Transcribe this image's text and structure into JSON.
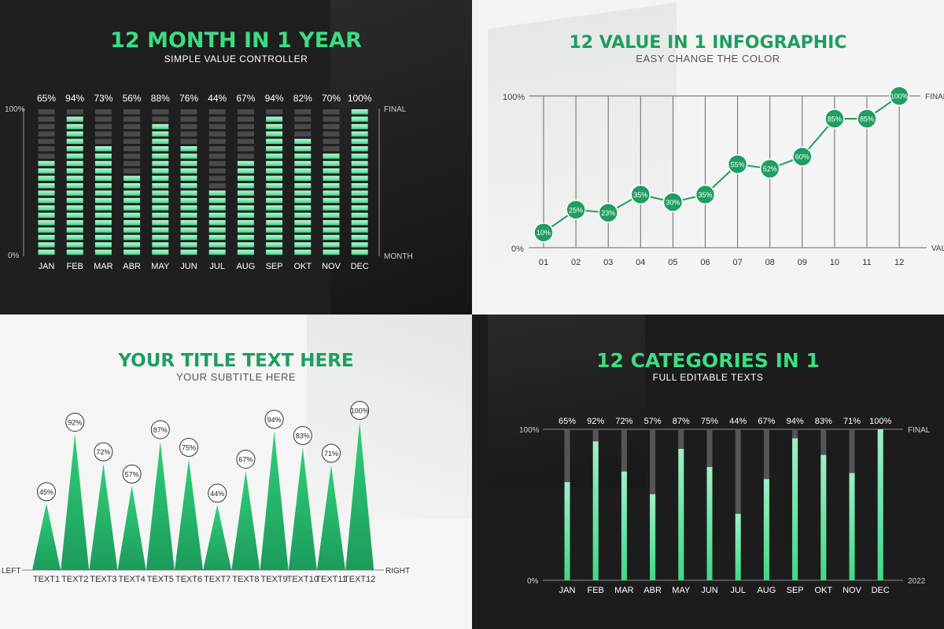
{
  "colors": {
    "green": "#3ddc84",
    "green_dark": "#1e9e60",
    "mint": "#9ff0c8",
    "gray_block": "#4a4a4a",
    "dark_bg": "#1f1f1f",
    "light_bg": "#f3f4f3"
  },
  "panel1": {
    "title": "12 MONTH IN 1 YEAR",
    "subtitle": "SIMPLE VALUE CONTROLLER",
    "chart_data": {
      "type": "bar",
      "categories": [
        "JAN",
        "FEB",
        "MAR",
        "ABR",
        "MAY",
        "JUN",
        "JUL",
        "AUG",
        "SEP",
        "OKT",
        "NOV",
        "DEC"
      ],
      "values": [
        65,
        94,
        73,
        56,
        88,
        76,
        44,
        67,
        94,
        82,
        70,
        100
      ],
      "value_labels": [
        "65%",
        "94%",
        "73%",
        "56%",
        "88%",
        "76%",
        "44%",
        "67%",
        "94%",
        "82%",
        "70%",
        "100%"
      ],
      "ylim": [
        0,
        100
      ],
      "y_top_label": "100%",
      "y_bottom_label": "0%",
      "right_top_label": "FINAL",
      "right_bottom_label": "MONTH"
    }
  },
  "panel2": {
    "title": "12 VALUE IN 1 INFOGRAPHIC",
    "subtitle": "EASY CHANGE THE COLOR",
    "chart_data": {
      "type": "line",
      "categories": [
        "01",
        "02",
        "03",
        "04",
        "05",
        "06",
        "07",
        "08",
        "09",
        "10",
        "11",
        "12"
      ],
      "values": [
        10,
        25,
        23,
        35,
        30,
        35,
        55,
        52,
        60,
        85,
        85,
        100
      ],
      "value_labels": [
        "10%",
        "25%",
        "23%",
        "35%",
        "30%",
        "35%",
        "55%",
        "52%",
        "60%",
        "85%",
        "85%",
        "100%"
      ],
      "ylim": [
        0,
        100
      ],
      "y_top_label": "100%",
      "y_bottom_label": "0%",
      "right_top_label": "FINAL",
      "right_bottom_label": "VALUES"
    }
  },
  "panel3": {
    "title": "YOUR TITLE TEXT HERE",
    "subtitle": "YOUR SUBTITLE HERE",
    "chart_data": {
      "type": "bar",
      "categories": [
        "TEXT1",
        "TEXT2",
        "TEXT3",
        "TEXT4",
        "TEXT5",
        "TEXT6",
        "TEXT7",
        "TEXT8",
        "TEXT9",
        "TEXT10",
        "TEXT11",
        "TEXT12"
      ],
      "values": [
        45,
        92,
        72,
        57,
        87,
        75,
        44,
        67,
        94,
        83,
        71,
        100
      ],
      "value_labels": [
        "45%",
        "92%",
        "72%",
        "57%",
        "87%",
        "75%",
        "44%",
        "67%",
        "94%",
        "83%",
        "71%",
        "100%"
      ],
      "ylim": [
        0,
        100
      ],
      "left_label": "LEFT",
      "right_label": "RIGHT"
    }
  },
  "panel4": {
    "title": "12 CATEGORIES IN 1",
    "subtitle": "FULL EDITABLE TEXTS",
    "chart_data": {
      "type": "bar",
      "categories": [
        "JAN",
        "FEB",
        "MAR",
        "ABR",
        "MAY",
        "JUN",
        "JUL",
        "AUG",
        "SEP",
        "OKT",
        "NOV",
        "DEC"
      ],
      "values": [
        65,
        92,
        72,
        57,
        87,
        75,
        44,
        67,
        94,
        83,
        71,
        100
      ],
      "value_labels": [
        "65%",
        "92%",
        "72%",
        "57%",
        "87%",
        "75%",
        "44%",
        "67%",
        "94%",
        "83%",
        "71%",
        "100%"
      ],
      "ylim": [
        0,
        100
      ],
      "y_top_label": "100%",
      "y_bottom_label": "0%",
      "right_top_label": "FINAL",
      "right_bottom_label": "2022"
    }
  }
}
